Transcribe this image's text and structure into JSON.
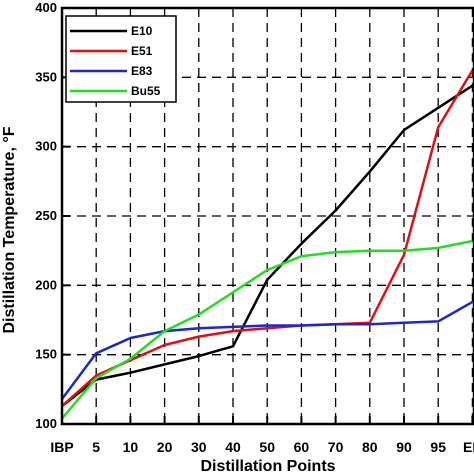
{
  "chart_data": {
    "type": "line",
    "xlabel": "Distillation Points",
    "ylabel": "Distillation Temperature, °F",
    "categories": [
      "IBP",
      "5",
      "10",
      "20",
      "30",
      "40",
      "50",
      "60",
      "70",
      "80",
      "90",
      "95",
      "EP"
    ],
    "ylim": [
      100,
      400
    ],
    "yticks": [
      100,
      150,
      200,
      250,
      300,
      350,
      400
    ],
    "grid": true,
    "legend_position": "top-left",
    "series": [
      {
        "name": "E10",
        "color": "#000000",
        "values": [
          113,
          132,
          137,
          143,
          149,
          156,
          204,
          230,
          254,
          282,
          312,
          328,
          344
        ]
      },
      {
        "name": "E51",
        "color": "#dd1111",
        "values": [
          113,
          135,
          146,
          157,
          163,
          167,
          169,
          171,
          172,
          173,
          222,
          314,
          355
        ]
      },
      {
        "name": "E83",
        "color": "#1a28cc",
        "values": [
          118,
          151,
          162,
          167,
          169,
          170,
          171,
          171,
          172,
          172,
          173,
          174,
          188
        ]
      },
      {
        "name": "Bu55",
        "color": "#22dd22",
        "values": [
          104,
          133,
          147,
          167,
          179,
          195,
          211,
          221,
          224,
          225,
          225,
          227,
          232
        ]
      }
    ]
  }
}
